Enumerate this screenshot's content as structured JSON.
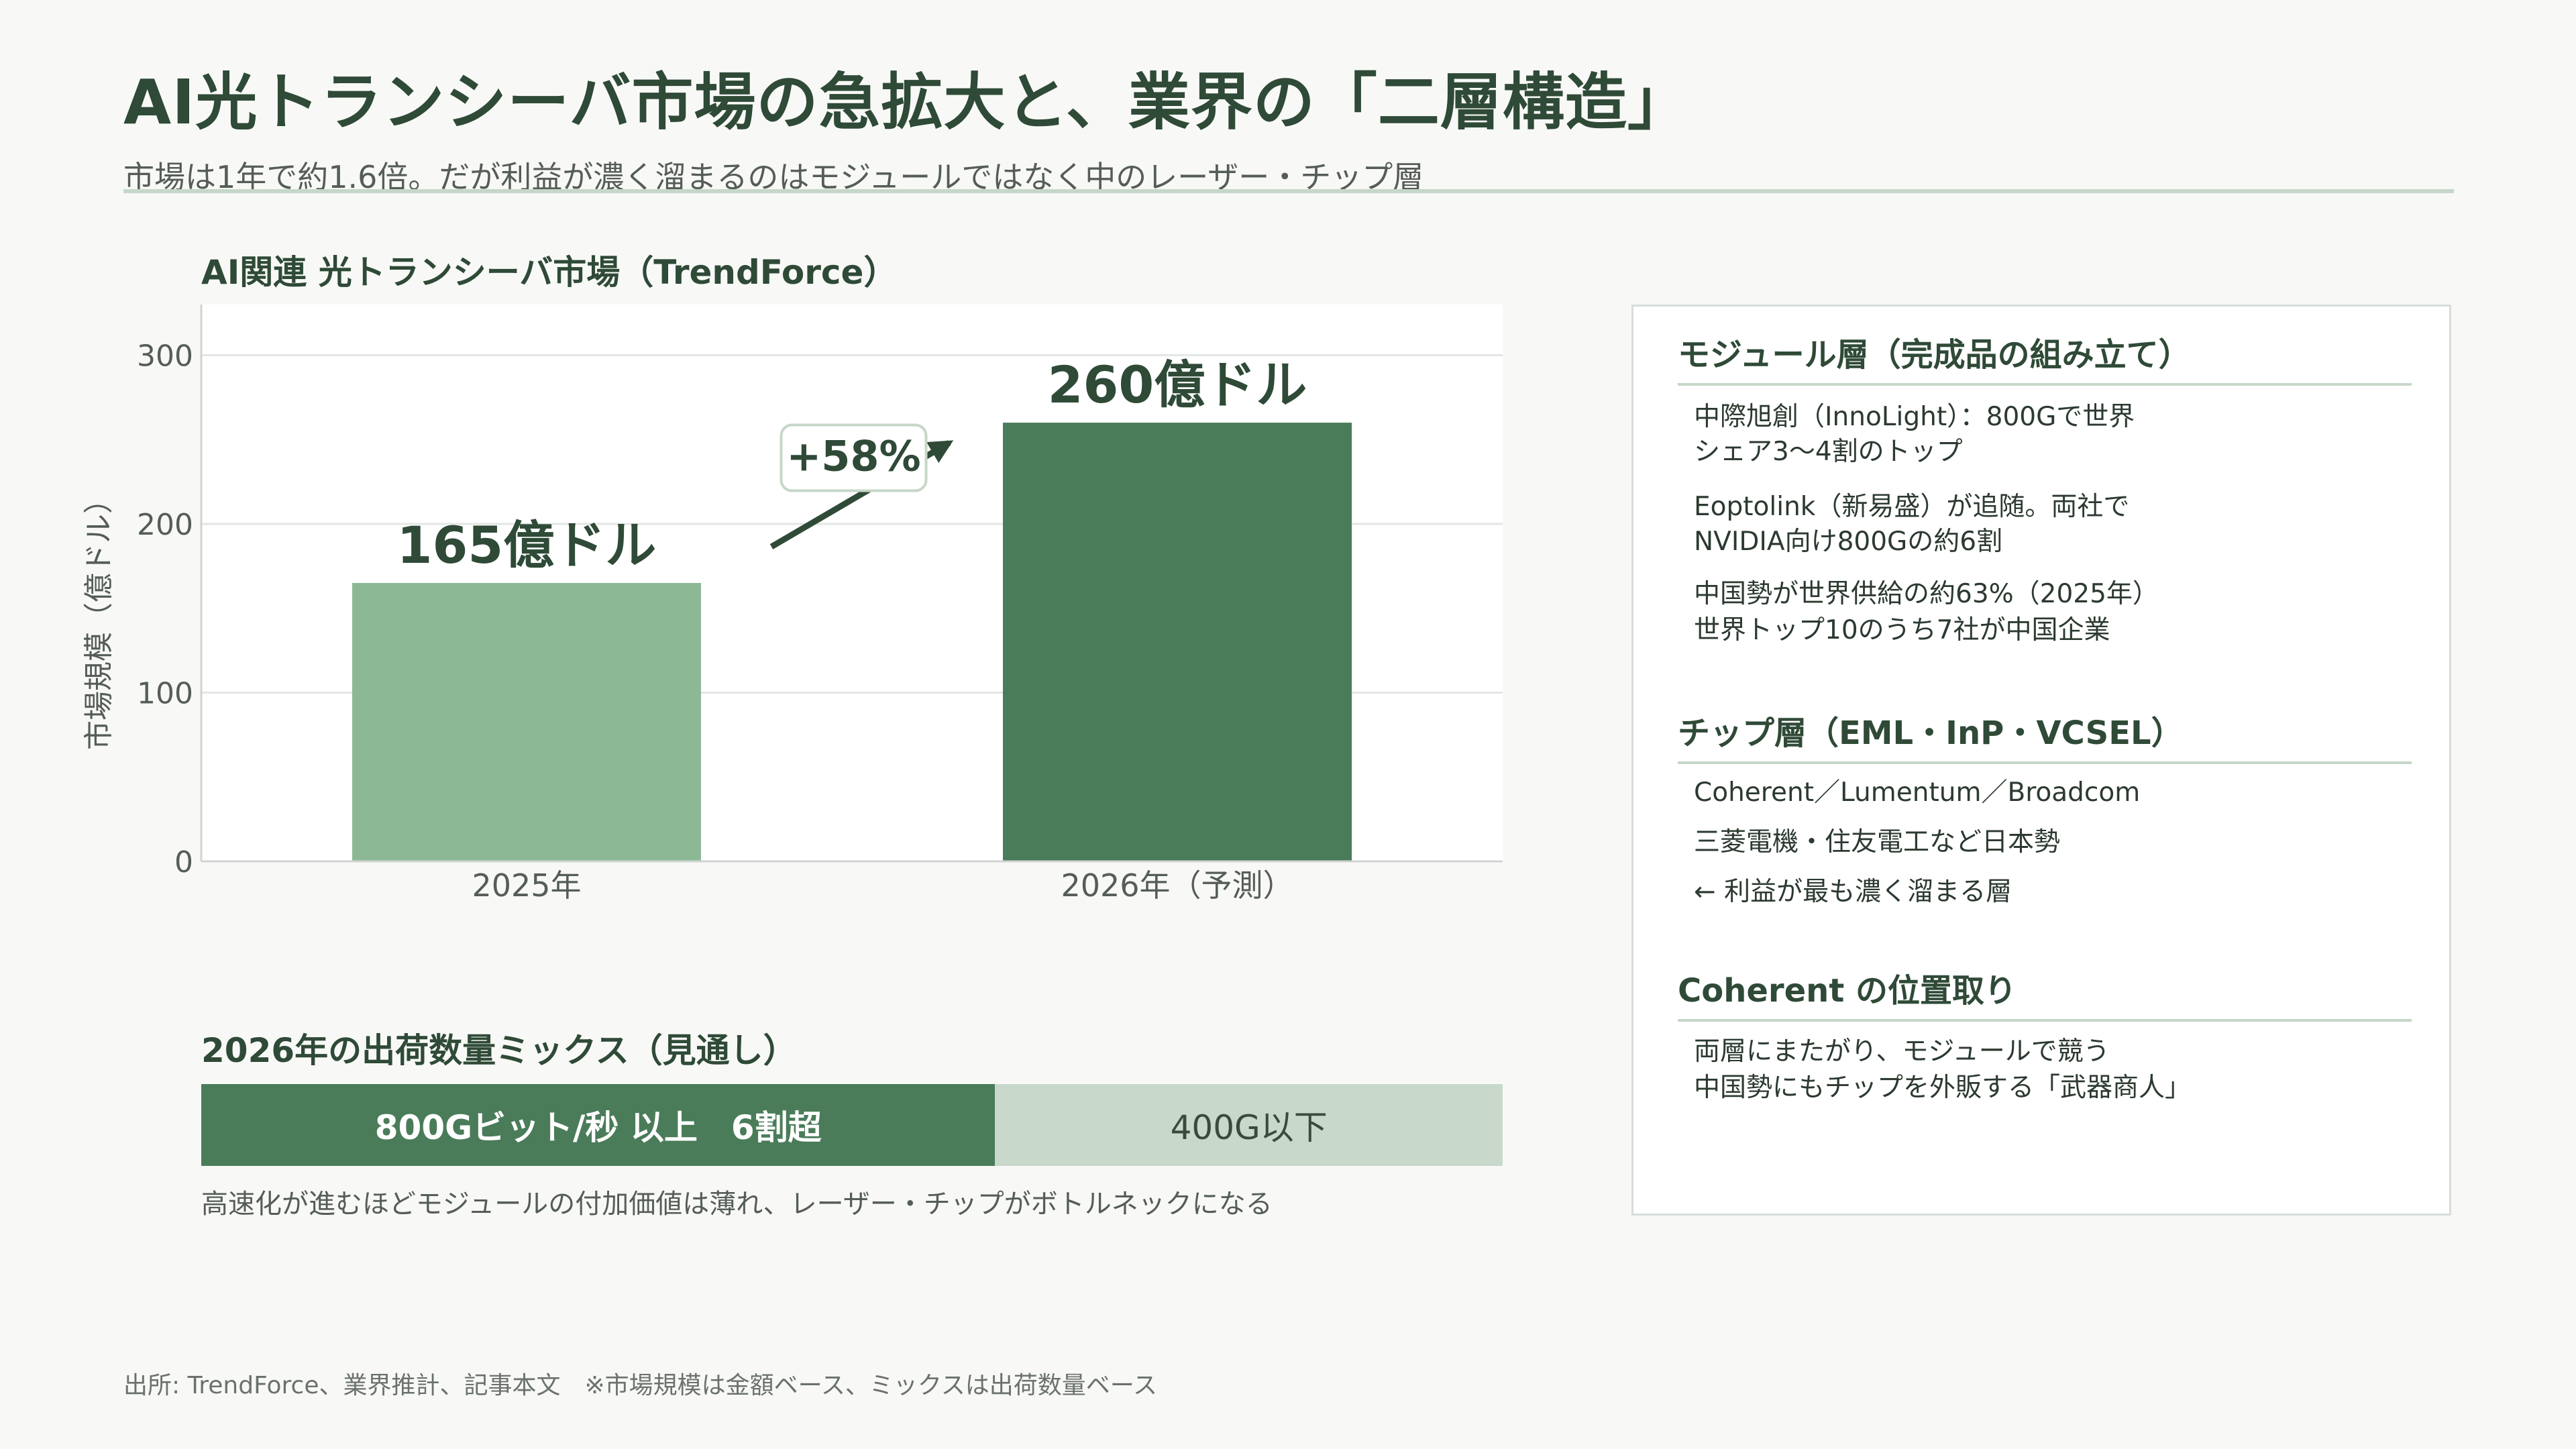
{
  "header": {
    "title": "AI光トランシーバ市場の急拡大と、業界の「二層構造」",
    "subtitle": "市場は1年で約1.6倍。だが利益が濃く溜まるのはモジュールではなく中のレーザー・チップ層"
  },
  "chart_data": {
    "type": "bar",
    "title": "AI関連 光トランシーバ市場（TrendForce）",
    "ylabel": "市場規模（億ドル）",
    "ylim": [
      0,
      330
    ],
    "yticks": [
      0,
      100,
      200,
      300
    ],
    "grid": true,
    "categories": [
      "2025年",
      "2026年（予測）"
    ],
    "values": [
      165,
      260
    ],
    "data_labels": [
      "165億ドル",
      "260億ドル"
    ],
    "annotation": "+58%",
    "colors": [
      "#8db896",
      "#4a7c59"
    ]
  },
  "mix": {
    "title": "2026年の出荷数量ミックス（見通し）",
    "segments": [
      {
        "label": "800Gビット/秒 以上　6割超",
        "share": 0.61,
        "color": "#4a7c59"
      },
      {
        "label": "400G以下",
        "share": 0.39,
        "color": "#c8d9cb"
      }
    ],
    "note": "高速化が進むほどモジュールの付加価値は薄れ、レーザー・チップがボトルネックになる"
  },
  "panel": {
    "module": {
      "heading": "モジュール層（完成品の組み立て）",
      "lines": [
        "中際旭創（InnoLight）：800Gで世界",
        "シェア3〜4割のトップ",
        "Eoptolink（新易盛）が追随。両社で",
        "NVIDIA向け800Gの約6割",
        "中国勢が世界供給の約63%（2025年）",
        "世界トップ10のうち7社が中国企業"
      ]
    },
    "chip": {
      "heading": "チップ層（EML・InP・VCSEL）",
      "lines": [
        "Coherent／Lumentum／Broadcom",
        "三菱電機・住友電工など日本勢",
        "← 利益が最も濃く溜まる層"
      ]
    },
    "coherent": {
      "heading": "Coherent の位置取り",
      "lines": [
        "両層にまたがり、モジュールで競う",
        "中国勢にもチップを外販する「武器商人」"
      ]
    }
  },
  "source": "出所: TrendForce、業界推計、記事本文　※市場規模は金額ベース、ミックスは出荷数量ベース"
}
